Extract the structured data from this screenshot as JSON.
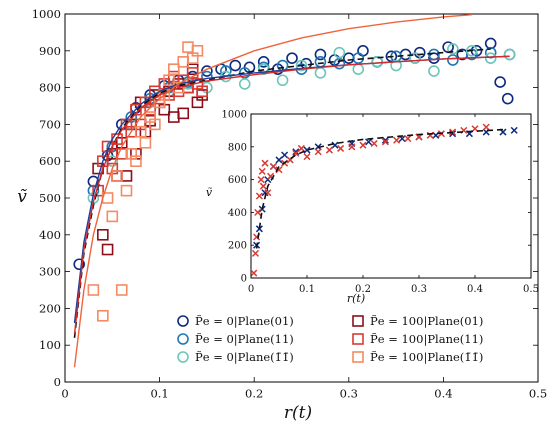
{
  "chart_data": [
    {
      "type": "scatter",
      "title": "",
      "xlabel": "r(t)",
      "ylabel": "ṽ",
      "xlim": [
        0,
        0.5
      ],
      "ylim": [
        0,
        1000
      ],
      "x_ticks": [
        "0",
        "0.1",
        "0.2",
        "0.3",
        "0.4",
        "0.5"
      ],
      "y_ticks": [
        "0",
        "100",
        "200",
        "300",
        "400",
        "500",
        "600",
        "700",
        "800",
        "900",
        "1000"
      ],
      "legend_position": "bottom-right",
      "legend": [
        {
          "name": "P̃e = 0|Plane(01)",
          "color": "#0d2a80",
          "marker": "circle"
        },
        {
          "name": "P̃e = 0|Plane(11)",
          "color": "#1f77b4",
          "marker": "circle"
        },
        {
          "name": "P̃e = 0|Plane(1̄1̄)",
          "color": "#6cc6b9",
          "marker": "circle"
        },
        {
          "name": "P̃e = 100|Plane(01)",
          "color": "#8b0f1a",
          "marker": "square"
        },
        {
          "name": "P̃e = 100|Plane(11)",
          "color": "#d93a32",
          "marker": "square"
        },
        {
          "name": "P̃e = 100|Plane(1̄1̄)",
          "color": "#f58a63",
          "marker": "square"
        }
      ],
      "series": [
        {
          "color": "#0d2a80",
          "marker": "circle",
          "x": [
            0.015,
            0.03,
            0.045,
            0.06,
            0.075,
            0.09,
            0.105,
            0.12,
            0.135,
            0.15,
            0.165,
            0.18,
            0.195,
            0.21,
            0.225,
            0.24,
            0.255,
            0.27,
            0.285,
            0.3,
            0.315,
            0.33,
            0.345,
            0.36,
            0.375,
            0.39,
            0.405,
            0.42,
            0.435,
            0.45,
            0.46,
            0.468
          ],
          "y": [
            320,
            545,
            615,
            700,
            745,
            780,
            805,
            820,
            830,
            845,
            850,
            860,
            855,
            870,
            850,
            880,
            865,
            890,
            875,
            880,
            900,
            870,
            885,
            890,
            895,
            880,
            910,
            890,
            900,
            920,
            815,
            770
          ]
        },
        {
          "color": "#1f77b4",
          "marker": "circle",
          "x": [
            0.03,
            0.05,
            0.07,
            0.09,
            0.11,
            0.13,
            0.15,
            0.17,
            0.19,
            0.21,
            0.23,
            0.25,
            0.27,
            0.29,
            0.31,
            0.33,
            0.35,
            0.37,
            0.39,
            0.41,
            0.43,
            0.45,
            0.47
          ],
          "y": [
            520,
            640,
            720,
            770,
            800,
            815,
            830,
            845,
            840,
            855,
            860,
            850,
            870,
            865,
            880,
            870,
            885,
            880,
            890,
            875,
            890,
            895,
            890
          ]
        },
        {
          "color": "#6cc6b9",
          "marker": "circle",
          "x": [
            0.03,
            0.05,
            0.07,
            0.09,
            0.11,
            0.13,
            0.15,
            0.17,
            0.19,
            0.21,
            0.23,
            0.25,
            0.27,
            0.29,
            0.31,
            0.33,
            0.35,
            0.37,
            0.39,
            0.41,
            0.43,
            0.45,
            0.47
          ],
          "y": [
            500,
            600,
            700,
            760,
            790,
            810,
            800,
            830,
            810,
            850,
            820,
            860,
            840,
            895,
            850,
            870,
            860,
            880,
            845,
            905,
            900,
            880,
            890
          ]
        },
        {
          "color": "#8b0f1a",
          "marker": "square",
          "x": [
            0.035,
            0.04,
            0.045,
            0.05,
            0.055,
            0.06,
            0.065,
            0.07,
            0.075,
            0.08,
            0.085,
            0.09,
            0.095,
            0.1,
            0.105,
            0.11,
            0.115,
            0.12,
            0.125,
            0.13,
            0.135,
            0.14,
            0.145
          ],
          "y": [
            580,
            400,
            360,
            620,
            560,
            650,
            560,
            700,
            620,
            760,
            680,
            710,
            780,
            760,
            740,
            790,
            720,
            810,
            730,
            800,
            850,
            760,
            780
          ]
        },
        {
          "color": "#d93a32",
          "marker": "square",
          "x": [
            0.035,
            0.04,
            0.045,
            0.05,
            0.055,
            0.06,
            0.065,
            0.07,
            0.075,
            0.08,
            0.085,
            0.09,
            0.095,
            0.1,
            0.105,
            0.11,
            0.115,
            0.12,
            0.125,
            0.13,
            0.135,
            0.14,
            0.145
          ],
          "y": [
            520,
            600,
            640,
            580,
            660,
            620,
            700,
            680,
            740,
            700,
            760,
            740,
            790,
            770,
            810,
            780,
            830,
            790,
            820,
            800,
            840,
            810,
            790
          ]
        },
        {
          "color": "#f58a63",
          "marker": "square",
          "x": [
            0.03,
            0.04,
            0.045,
            0.05,
            0.055,
            0.06,
            0.065,
            0.07,
            0.075,
            0.08,
            0.085,
            0.09,
            0.095,
            0.1,
            0.105,
            0.11,
            0.115,
            0.12,
            0.125,
            0.13,
            0.135,
            0.14
          ],
          "y": [
            250,
            180,
            500,
            450,
            560,
            250,
            520,
            620,
            600,
            680,
            650,
            720,
            700,
            760,
            780,
            820,
            850,
            800,
            870,
            910,
            880,
            900
          ]
        }
      ],
      "curves": [
        {
          "style": "dashed",
          "color": "#111111",
          "x": [
            0.01,
            0.02,
            0.03,
            0.04,
            0.05,
            0.06,
            0.08,
            0.1,
            0.12,
            0.15,
            0.2,
            0.25,
            0.3,
            0.35,
            0.4,
            0.45
          ],
          "y": [
            120,
            350,
            480,
            580,
            640,
            690,
            750,
            785,
            805,
            820,
            845,
            860,
            875,
            885,
            895,
            905
          ]
        },
        {
          "style": "solid",
          "color": "#1f3f9c",
          "x": [
            0.01,
            0.02,
            0.03,
            0.04,
            0.05,
            0.06,
            0.08,
            0.1,
            0.12,
            0.15,
            0.2,
            0.25,
            0.3,
            0.35,
            0.4,
            0.47
          ],
          "y": [
            160,
            380,
            510,
            600,
            660,
            700,
            755,
            790,
            810,
            825,
            840,
            852,
            862,
            870,
            878,
            885
          ]
        },
        {
          "style": "solid",
          "color": "#d22c2c",
          "x": [
            0.01,
            0.02,
            0.03,
            0.04,
            0.05,
            0.06,
            0.08,
            0.1,
            0.12,
            0.15,
            0.2,
            0.25,
            0.3,
            0.35,
            0.4,
            0.47
          ],
          "y": [
            130,
            360,
            490,
            580,
            640,
            685,
            745,
            780,
            800,
            818,
            835,
            850,
            862,
            870,
            878,
            885
          ]
        },
        {
          "style": "solid",
          "color": "#f0643c",
          "x": [
            0.01,
            0.02,
            0.03,
            0.04,
            0.05,
            0.06,
            0.08,
            0.1,
            0.12,
            0.15,
            0.2,
            0.25,
            0.3,
            0.35,
            0.4,
            0.43
          ],
          "y": [
            40,
            250,
            400,
            500,
            580,
            640,
            720,
            770,
            810,
            850,
            900,
            935,
            960,
            978,
            992,
            998
          ]
        }
      ]
    },
    {
      "type": "scatter",
      "title": "",
      "xlabel": "r(t)",
      "ylabel": "ṽ",
      "xlim": [
        0,
        0.5
      ],
      "ylim": [
        0,
        1000
      ],
      "x_ticks": [
        "0",
        "0.1",
        "0.2",
        "0.3",
        "0.4",
        "0.5"
      ],
      "y_ticks": [
        "0",
        "200",
        "400",
        "600",
        "800",
        "1000"
      ],
      "series": [
        {
          "color": "#0d2a80",
          "marker": "x",
          "x": [
            0.01,
            0.015,
            0.02,
            0.025,
            0.03,
            0.04,
            0.05,
            0.06,
            0.08,
            0.1,
            0.12,
            0.15,
            0.18,
            0.21,
            0.24,
            0.27,
            0.3,
            0.33,
            0.36,
            0.39,
            0.42,
            0.45,
            0.47
          ],
          "y": [
            200,
            300,
            420,
            520,
            600,
            680,
            720,
            750,
            770,
            780,
            800,
            810,
            820,
            830,
            840,
            850,
            860,
            870,
            880,
            880,
            890,
            890,
            900
          ]
        },
        {
          "color": "#d93a32",
          "marker": "x",
          "x": [
            0.005,
            0.008,
            0.01,
            0.012,
            0.015,
            0.018,
            0.02,
            0.022,
            0.025,
            0.03,
            0.035,
            0.04,
            0.05,
            0.06,
            0.07,
            0.08,
            0.09,
            0.1,
            0.12,
            0.14,
            0.16,
            0.18,
            0.2,
            0.22,
            0.24,
            0.26,
            0.28,
            0.3,
            0.32,
            0.34,
            0.36,
            0.38,
            0.4,
            0.42
          ],
          "y": [
            30,
            150,
            250,
            400,
            500,
            600,
            650,
            560,
            700,
            520,
            620,
            680,
            660,
            700,
            720,
            760,
            790,
            740,
            770,
            780,
            790,
            800,
            810,
            820,
            830,
            840,
            850,
            860,
            870,
            880,
            890,
            900,
            910,
            920
          ]
        }
      ],
      "curves": [
        {
          "style": "dashed",
          "color": "#111111",
          "x": [
            0.01,
            0.02,
            0.03,
            0.05,
            0.08,
            0.1,
            0.15,
            0.2,
            0.25,
            0.3,
            0.35,
            0.4,
            0.45
          ],
          "y": [
            180,
            420,
            560,
            680,
            750,
            780,
            820,
            845,
            860,
            875,
            885,
            895,
            905
          ]
        }
      ]
    }
  ]
}
